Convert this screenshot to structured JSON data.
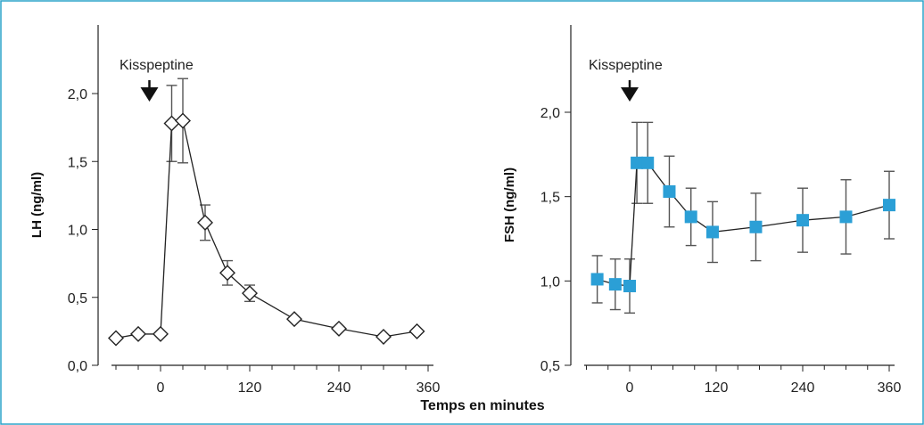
{
  "chart_data": [
    {
      "type": "line",
      "ylabel": "LH (ng/ml)",
      "xlabel": "Temps en minutes",
      "annotation": "Kisspeptine",
      "annotation_x": -15,
      "xlim": [
        -70,
        370
      ],
      "ylim": [
        0,
        2.5
      ],
      "xticks": [
        0,
        120,
        240,
        360
      ],
      "xtick_labels": [
        "0",
        "120",
        "240",
        "360"
      ],
      "yticks": [
        0,
        0.5,
        1.0,
        1.5,
        2.0
      ],
      "ytick_labels": [
        "0,0",
        "0,5",
        "1,0",
        "1,5",
        "2,0"
      ],
      "marker": "diamond",
      "marker_color": "#ffffff",
      "series": [
        {
          "x": [
            -60,
            -30,
            0,
            15,
            30,
            60,
            90,
            120,
            180,
            240,
            300,
            345
          ],
          "y": [
            0.2,
            0.23,
            0.23,
            1.78,
            1.8,
            1.05,
            0.68,
            0.53,
            0.34,
            0.27,
            0.21,
            0.25
          ],
          "err": [
            0,
            0,
            0,
            0.28,
            0.31,
            0.13,
            0.09,
            0.06,
            0,
            0,
            0,
            0
          ]
        }
      ]
    },
    {
      "type": "line",
      "ylabel": "FSH (ng/ml)",
      "xlabel": "",
      "annotation": "Kisspeptine",
      "annotation_x": 0,
      "xlim": [
        -60,
        370
      ],
      "ylim": [
        0.5,
        2.5
      ],
      "xticks": [
        0,
        120,
        240,
        360
      ],
      "xtick_labels": [
        "0",
        "120",
        "240",
        "360"
      ],
      "yticks": [
        0.5,
        1.0,
        1.5,
        2.0
      ],
      "ytick_labels": [
        "0,5",
        "1,0",
        "1,5",
        "2,0"
      ],
      "marker": "square",
      "marker_color": "#2b9fd6",
      "series": [
        {
          "x": [
            -45,
            -20,
            0,
            10,
            25,
            55,
            85,
            115,
            175,
            240,
            300,
            360
          ],
          "y": [
            1.01,
            0.98,
            0.97,
            1.7,
            1.7,
            1.53,
            1.38,
            1.29,
            1.32,
            1.36,
            1.38,
            1.45
          ],
          "err": [
            0.14,
            0.15,
            0.16,
            0.24,
            0.24,
            0.21,
            0.17,
            0.18,
            0.2,
            0.19,
            0.22,
            0.2
          ]
        }
      ]
    }
  ]
}
